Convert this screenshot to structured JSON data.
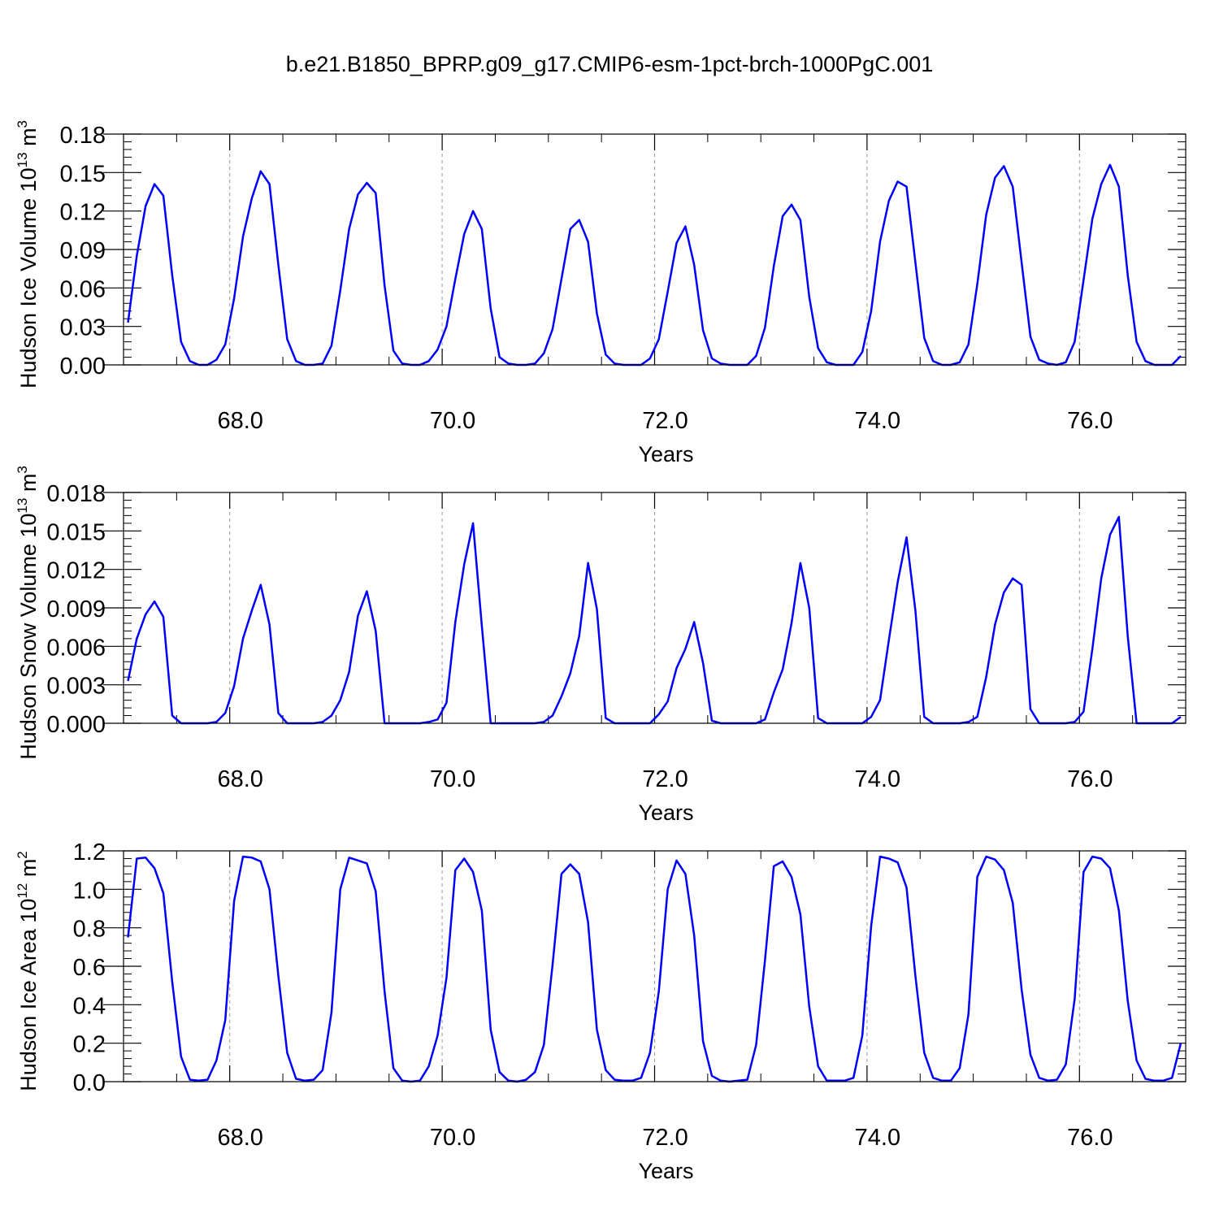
{
  "title": "b.e21.B1850_BPRP.g09_g17.CMIP6-esm-1pct-brch-1000PgC.001",
  "line_color": "#0000ff",
  "chart_data": [
    {
      "type": "line",
      "ylabel": "Hudson Ice Volume 10",
      "ylabel_exp": "13",
      "ylabel_unit": "m",
      "ylabel_unit_exp": "3",
      "xlabel": "Years",
      "xlim": [
        67.0,
        77.0
      ],
      "ylim": [
        0.0,
        0.18
      ],
      "yticks": [
        0.0,
        0.03,
        0.06,
        0.09,
        0.12,
        0.15,
        0.18
      ],
      "ytick_labels": [
        "0.00",
        "0.03",
        "0.06",
        "0.09",
        "0.12",
        "0.15",
        "0.18"
      ],
      "xticks": [
        68.0,
        70.0,
        72.0,
        74.0,
        76.0
      ],
      "xtick_labels": [
        "68.0",
        "70.0",
        "72.0",
        "74.0",
        "76.0"
      ],
      "series": [
        {
          "x_start": 67.0417,
          "x_step": 0.0833,
          "values": [
            0.033,
            0.085,
            0.124,
            0.141,
            0.132,
            0.07,
            0.018,
            0.003,
            0.0,
            0.0,
            0.004,
            0.016,
            0.052,
            0.1,
            0.13,
            0.151,
            0.141,
            0.078,
            0.02,
            0.003,
            0.0,
            0.0,
            0.001,
            0.015,
            0.058,
            0.106,
            0.133,
            0.142,
            0.134,
            0.062,
            0.011,
            0.001,
            0.0,
            0.0,
            0.003,
            0.012,
            0.03,
            0.067,
            0.102,
            0.12,
            0.106,
            0.044,
            0.006,
            0.001,
            0.0,
            0.0,
            0.001,
            0.009,
            0.028,
            0.067,
            0.106,
            0.113,
            0.096,
            0.04,
            0.008,
            0.001,
            0.0,
            0.0,
            0.0,
            0.005,
            0.02,
            0.057,
            0.095,
            0.108,
            0.078,
            0.027,
            0.005,
            0.001,
            0.0,
            0.0,
            0.0,
            0.007,
            0.029,
            0.077,
            0.116,
            0.125,
            0.113,
            0.053,
            0.013,
            0.002,
            0.0,
            0.0,
            0.0,
            0.01,
            0.042,
            0.096,
            0.128,
            0.143,
            0.139,
            0.08,
            0.021,
            0.003,
            0.0,
            0.0,
            0.002,
            0.016,
            0.063,
            0.117,
            0.146,
            0.155,
            0.139,
            0.08,
            0.022,
            0.004,
            0.001,
            0.0,
            0.002,
            0.018,
            0.066,
            0.114,
            0.141,
            0.156,
            0.139,
            0.07,
            0.018,
            0.003,
            0.0,
            0.0,
            0.0,
            0.007
          ]
        }
      ]
    },
    {
      "type": "line",
      "ylabel": "Hudson Snow Volume 10",
      "ylabel_exp": "13",
      "ylabel_unit": "m",
      "ylabel_unit_exp": "3",
      "xlabel": "Years",
      "xlim": [
        67.0,
        77.0
      ],
      "ylim": [
        0.0,
        0.018
      ],
      "yticks": [
        0.0,
        0.003,
        0.006,
        0.009,
        0.012,
        0.015,
        0.018
      ],
      "ytick_labels": [
        "0.000",
        "0.003",
        "0.006",
        "0.009",
        "0.012",
        "0.015",
        "0.018"
      ],
      "xticks": [
        68.0,
        70.0,
        72.0,
        74.0,
        76.0
      ],
      "xtick_labels": [
        "68.0",
        "70.0",
        "72.0",
        "74.0",
        "76.0"
      ],
      "series": [
        {
          "x_start": 67.0417,
          "x_step": 0.0833,
          "values": [
            0.0033,
            0.0066,
            0.0085,
            0.0095,
            0.0083,
            0.0006,
            0.0,
            0.0,
            0.0,
            0.0,
            0.0001,
            0.0008,
            0.0029,
            0.0066,
            0.0088,
            0.0108,
            0.0077,
            0.0008,
            0.0,
            0.0,
            0.0,
            0.0,
            0.0001,
            0.0006,
            0.0018,
            0.004,
            0.0084,
            0.0103,
            0.0072,
            0.0,
            0.0,
            0.0,
            0.0,
            0.0,
            0.0001,
            0.0003,
            0.0016,
            0.0079,
            0.0124,
            0.0156,
            0.0076,
            0.0,
            0.0,
            0.0,
            0.0,
            0.0,
            0.0,
            0.0001,
            0.0006,
            0.0021,
            0.0039,
            0.0068,
            0.0125,
            0.0089,
            0.0004,
            0.0,
            0.0,
            0.0,
            0.0,
            0.0,
            0.0007,
            0.0017,
            0.0043,
            0.0058,
            0.0079,
            0.0047,
            0.0002,
            0.0,
            0.0,
            0.0,
            0.0,
            0.0,
            0.0003,
            0.0024,
            0.0042,
            0.0078,
            0.0125,
            0.009,
            0.0004,
            0.0,
            0.0,
            0.0,
            0.0,
            0.0,
            0.0005,
            0.0018,
            0.0065,
            0.011,
            0.0145,
            0.0088,
            0.0005,
            0.0,
            0.0,
            0.0,
            0.0,
            0.0001,
            0.0005,
            0.0036,
            0.0077,
            0.0102,
            0.0113,
            0.0108,
            0.0011,
            0.0,
            0.0,
            0.0,
            0.0,
            0.0001,
            0.0009,
            0.0058,
            0.0113,
            0.0147,
            0.0161,
            0.0068,
            0.0,
            0.0,
            0.0,
            0.0,
            0.0,
            0.0005
          ]
        }
      ]
    },
    {
      "type": "line",
      "ylabel": "Hudson Ice Area 10",
      "ylabel_exp": "12",
      "ylabel_unit": "m",
      "ylabel_unit_exp": "2",
      "xlabel": "Years",
      "xlim": [
        67.0,
        77.0
      ],
      "ylim": [
        0.0,
        1.2
      ],
      "yticks": [
        0.0,
        0.2,
        0.4,
        0.6,
        0.8,
        1.0,
        1.2
      ],
      "ytick_labels": [
        "0.0",
        "0.2",
        "0.4",
        "0.6",
        "0.8",
        "1.0",
        "1.2"
      ],
      "xticks": [
        68.0,
        70.0,
        72.0,
        74.0,
        76.0
      ],
      "xtick_labels": [
        "68.0",
        "70.0",
        "72.0",
        "74.0",
        "76.0"
      ],
      "series": [
        {
          "x_start": 67.0417,
          "x_step": 0.0833,
          "values": [
            0.75,
            1.16,
            1.165,
            1.11,
            0.98,
            0.52,
            0.13,
            0.01,
            0.005,
            0.01,
            0.11,
            0.32,
            0.94,
            1.17,
            1.165,
            1.145,
            1.0,
            0.55,
            0.15,
            0.015,
            0.005,
            0.01,
            0.06,
            0.36,
            1.0,
            1.165,
            1.15,
            1.135,
            0.99,
            0.47,
            0.07,
            0.005,
            0.0,
            0.005,
            0.08,
            0.24,
            0.54,
            1.1,
            1.16,
            1.09,
            0.89,
            0.27,
            0.05,
            0.005,
            0.0,
            0.01,
            0.05,
            0.19,
            0.61,
            1.08,
            1.13,
            1.08,
            0.83,
            0.27,
            0.06,
            0.01,
            0.005,
            0.005,
            0.02,
            0.15,
            0.47,
            1.0,
            1.15,
            1.08,
            0.76,
            0.21,
            0.03,
            0.005,
            0.0,
            0.005,
            0.01,
            0.19,
            0.63,
            1.12,
            1.145,
            1.065,
            0.87,
            0.39,
            0.08,
            0.005,
            0.005,
            0.005,
            0.02,
            0.24,
            0.81,
            1.17,
            1.16,
            1.14,
            1.01,
            0.55,
            0.15,
            0.02,
            0.005,
            0.005,
            0.07,
            0.35,
            1.065,
            1.17,
            1.155,
            1.1,
            0.93,
            0.48,
            0.14,
            0.02,
            0.005,
            0.01,
            0.09,
            0.43,
            1.09,
            1.17,
            1.16,
            1.11,
            0.89,
            0.42,
            0.11,
            0.015,
            0.005,
            0.005,
            0.02,
            0.2
          ]
        }
      ]
    }
  ]
}
